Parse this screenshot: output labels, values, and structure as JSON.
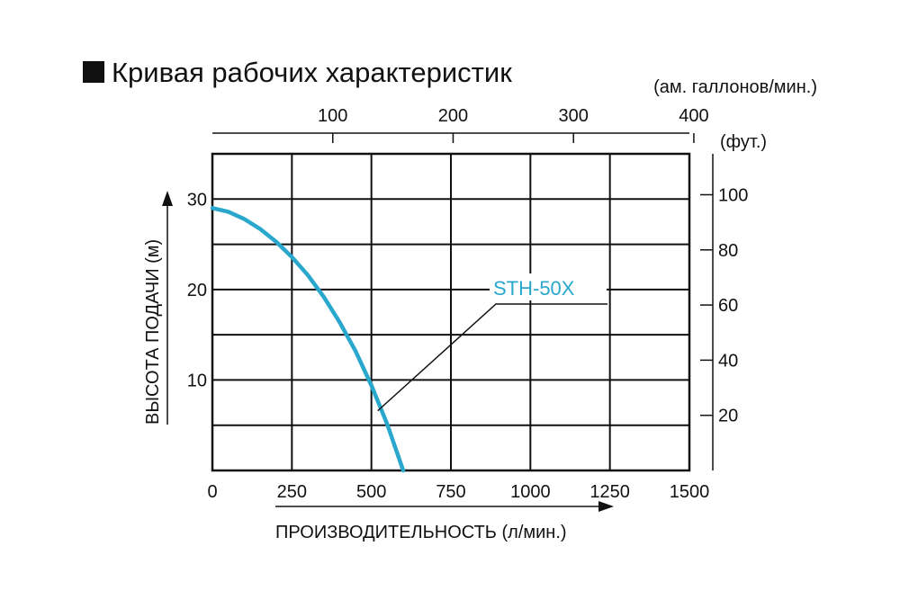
{
  "chart_data": {
    "type": "line",
    "title": "Кривая рабочих характеристик",
    "xlabel": "ПРОИЗВОДИТЕЛЬНОСТЬ (л/мин.)",
    "ylabel": "ВЫСОТА ПОДАЧИ (м)",
    "x_ticks": [
      "0",
      "250",
      "500",
      "750",
      "1000",
      "1250",
      "1500"
    ],
    "y_ticks": [
      "10",
      "20",
      "30"
    ],
    "xlim": [
      0,
      1500
    ],
    "ylim": [
      0,
      35
    ],
    "grid": true,
    "secondary_x_axis": {
      "unit_label": "(ам. галлонов/мин.)",
      "ticks": [
        "100",
        "200",
        "300",
        "400"
      ],
      "values": [
        100,
        200,
        300,
        400
      ],
      "factor_lpm_per_unit": 3.785
    },
    "secondary_y_axis": {
      "unit_label": "(фут.)",
      "ticks": [
        "20",
        "40",
        "60",
        "80",
        "100"
      ],
      "values": [
        20,
        40,
        60,
        80,
        100
      ],
      "factor_ft_per_m": 3.281
    },
    "series": [
      {
        "name": "STH-50X",
        "color": "#2aa7cc",
        "x": [
          0,
          50,
          100,
          150,
          200,
          250,
          300,
          350,
          400,
          450,
          500,
          550,
          600
        ],
        "y": [
          29,
          28.6,
          27.8,
          26.7,
          25.3,
          23.6,
          21.6,
          19.2,
          16.4,
          13.2,
          9.4,
          5.1,
          0
        ]
      }
    ],
    "annotations": [
      {
        "text": "STH-50X",
        "points_to": {
          "x": 520,
          "y": 6.6
        }
      }
    ]
  }
}
